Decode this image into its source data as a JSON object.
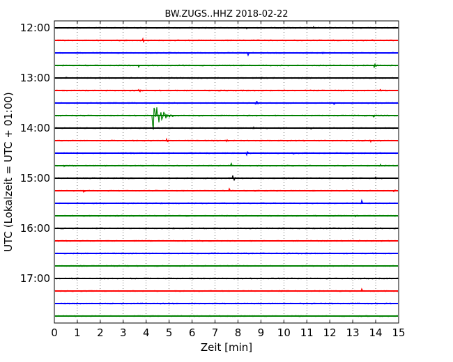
{
  "chart_data": {
    "type": "line",
    "title": "BW.ZUGS..HHZ 2018-02-22",
    "xlabel": "Zeit  [min]",
    "ylabel": "UTC (Lokalzeit = UTC + 01:00)",
    "xlim": [
      0,
      15
    ],
    "x_ticks": [
      "0",
      "1",
      "2",
      "3",
      "4",
      "5",
      "6",
      "7",
      "8",
      "9",
      "10",
      "11",
      "12",
      "13",
      "14",
      "15"
    ],
    "y_ticks": [
      "12:00",
      "13:00",
      "14:00",
      "15:00",
      "16:00",
      "17:00"
    ],
    "grid": true,
    "row_colors": [
      "#000000",
      "#ff0000",
      "#0000ff",
      "#008000"
    ],
    "rows": [
      {
        "time": "12:00",
        "color": "#000000",
        "events": [
          {
            "t": 8.4,
            "amp": 0.35
          },
          {
            "t": 11.3,
            "amp": 0.3
          }
        ]
      },
      {
        "time": "12:15",
        "color": "#ff0000",
        "events": [
          {
            "t": 3.85,
            "amp": 0.6
          },
          {
            "t": 13.8,
            "amp": 0.35
          }
        ]
      },
      {
        "time": "12:30",
        "color": "#0000ff",
        "events": [
          {
            "t": 8.45,
            "amp": 0.7
          },
          {
            "t": 11.7,
            "amp": 0.3
          }
        ]
      },
      {
        "time": "12:45",
        "color": "#008000",
        "events": [
          {
            "t": 3.7,
            "amp": 0.35
          },
          {
            "t": 13.95,
            "amp": 0.6
          }
        ]
      },
      {
        "time": "13:00",
        "color": "#000000",
        "events": [
          {
            "t": 0.5,
            "amp": 0.3
          },
          {
            "t": 9.0,
            "amp": 0.3
          }
        ]
      },
      {
        "time": "13:15",
        "color": "#ff0000",
        "events": [
          {
            "t": 3.7,
            "amp": 0.6
          },
          {
            "t": 10.0,
            "amp": 0.3
          },
          {
            "t": 14.2,
            "amp": 0.4
          }
        ]
      },
      {
        "time": "13:30",
        "color": "#0000ff",
        "events": [
          {
            "t": 8.8,
            "amp": 0.6
          },
          {
            "t": 12.2,
            "amp": 0.3
          }
        ]
      },
      {
        "time": "13:45",
        "color": "#008000",
        "events": [
          {
            "t": 4.3,
            "amp": 3.0
          },
          {
            "t": 13.9,
            "amp": 0.7
          }
        ]
      },
      {
        "time": "14:00",
        "color": "#000000",
        "events": [
          {
            "t": 8.7,
            "amp": 0.3
          },
          {
            "t": 11.2,
            "amp": 0.25
          }
        ]
      },
      {
        "time": "14:15",
        "color": "#ff0000",
        "events": [
          {
            "t": 4.9,
            "amp": 0.6
          },
          {
            "t": 7.5,
            "amp": 0.3
          },
          {
            "t": 13.8,
            "amp": 0.3
          }
        ]
      },
      {
        "time": "14:30",
        "color": "#0000ff",
        "events": [
          {
            "t": 8.4,
            "amp": 0.55
          },
          {
            "t": 10.4,
            "amp": 0.3
          }
        ]
      },
      {
        "time": "14:45",
        "color": "#008000",
        "events": [
          {
            "t": 0.4,
            "amp": 0.3
          },
          {
            "t": 7.7,
            "amp": 0.6
          },
          {
            "t": 14.2,
            "amp": 0.35
          }
        ]
      },
      {
        "time": "15:00",
        "color": "#000000",
        "events": [
          {
            "t": 7.8,
            "amp": 0.8
          },
          {
            "t": 14.0,
            "amp": 0.3
          }
        ]
      },
      {
        "time": "15:15",
        "color": "#ff0000",
        "events": [
          {
            "t": 1.3,
            "amp": 0.3
          },
          {
            "t": 7.6,
            "amp": 0.65
          },
          {
            "t": 14.8,
            "amp": 0.35
          }
        ]
      },
      {
        "time": "15:30",
        "color": "#0000ff",
        "events": [
          {
            "t": 6.5,
            "amp": 0.2
          },
          {
            "t": 13.4,
            "amp": 0.7
          }
        ]
      },
      {
        "time": "15:45",
        "color": "#008000",
        "events": [
          {
            "t": 13.1,
            "amp": 0.25
          }
        ]
      },
      {
        "time": "16:00",
        "color": "#000000",
        "events": [
          {
            "t": 0.2,
            "amp": 0.3
          },
          {
            "t": 15.0,
            "amp": 0.3
          }
        ]
      },
      {
        "time": "16:15",
        "color": "#ff0000",
        "events": [
          {
            "t": 13.3,
            "amp": 0.2
          }
        ]
      },
      {
        "time": "16:30",
        "color": "#0000ff",
        "events": [
          {
            "t": 8.1,
            "amp": 0.2
          }
        ]
      },
      {
        "time": "16:45",
        "color": "#008000",
        "events": []
      },
      {
        "time": "17:00",
        "color": "#000000",
        "events": []
      },
      {
        "time": "17:15",
        "color": "#ff0000",
        "events": [
          {
            "t": 13.4,
            "amp": 0.6
          }
        ]
      },
      {
        "time": "17:30",
        "color": "#0000ff",
        "events": []
      },
      {
        "time": "17:45",
        "color": "#008000",
        "events": []
      }
    ]
  }
}
